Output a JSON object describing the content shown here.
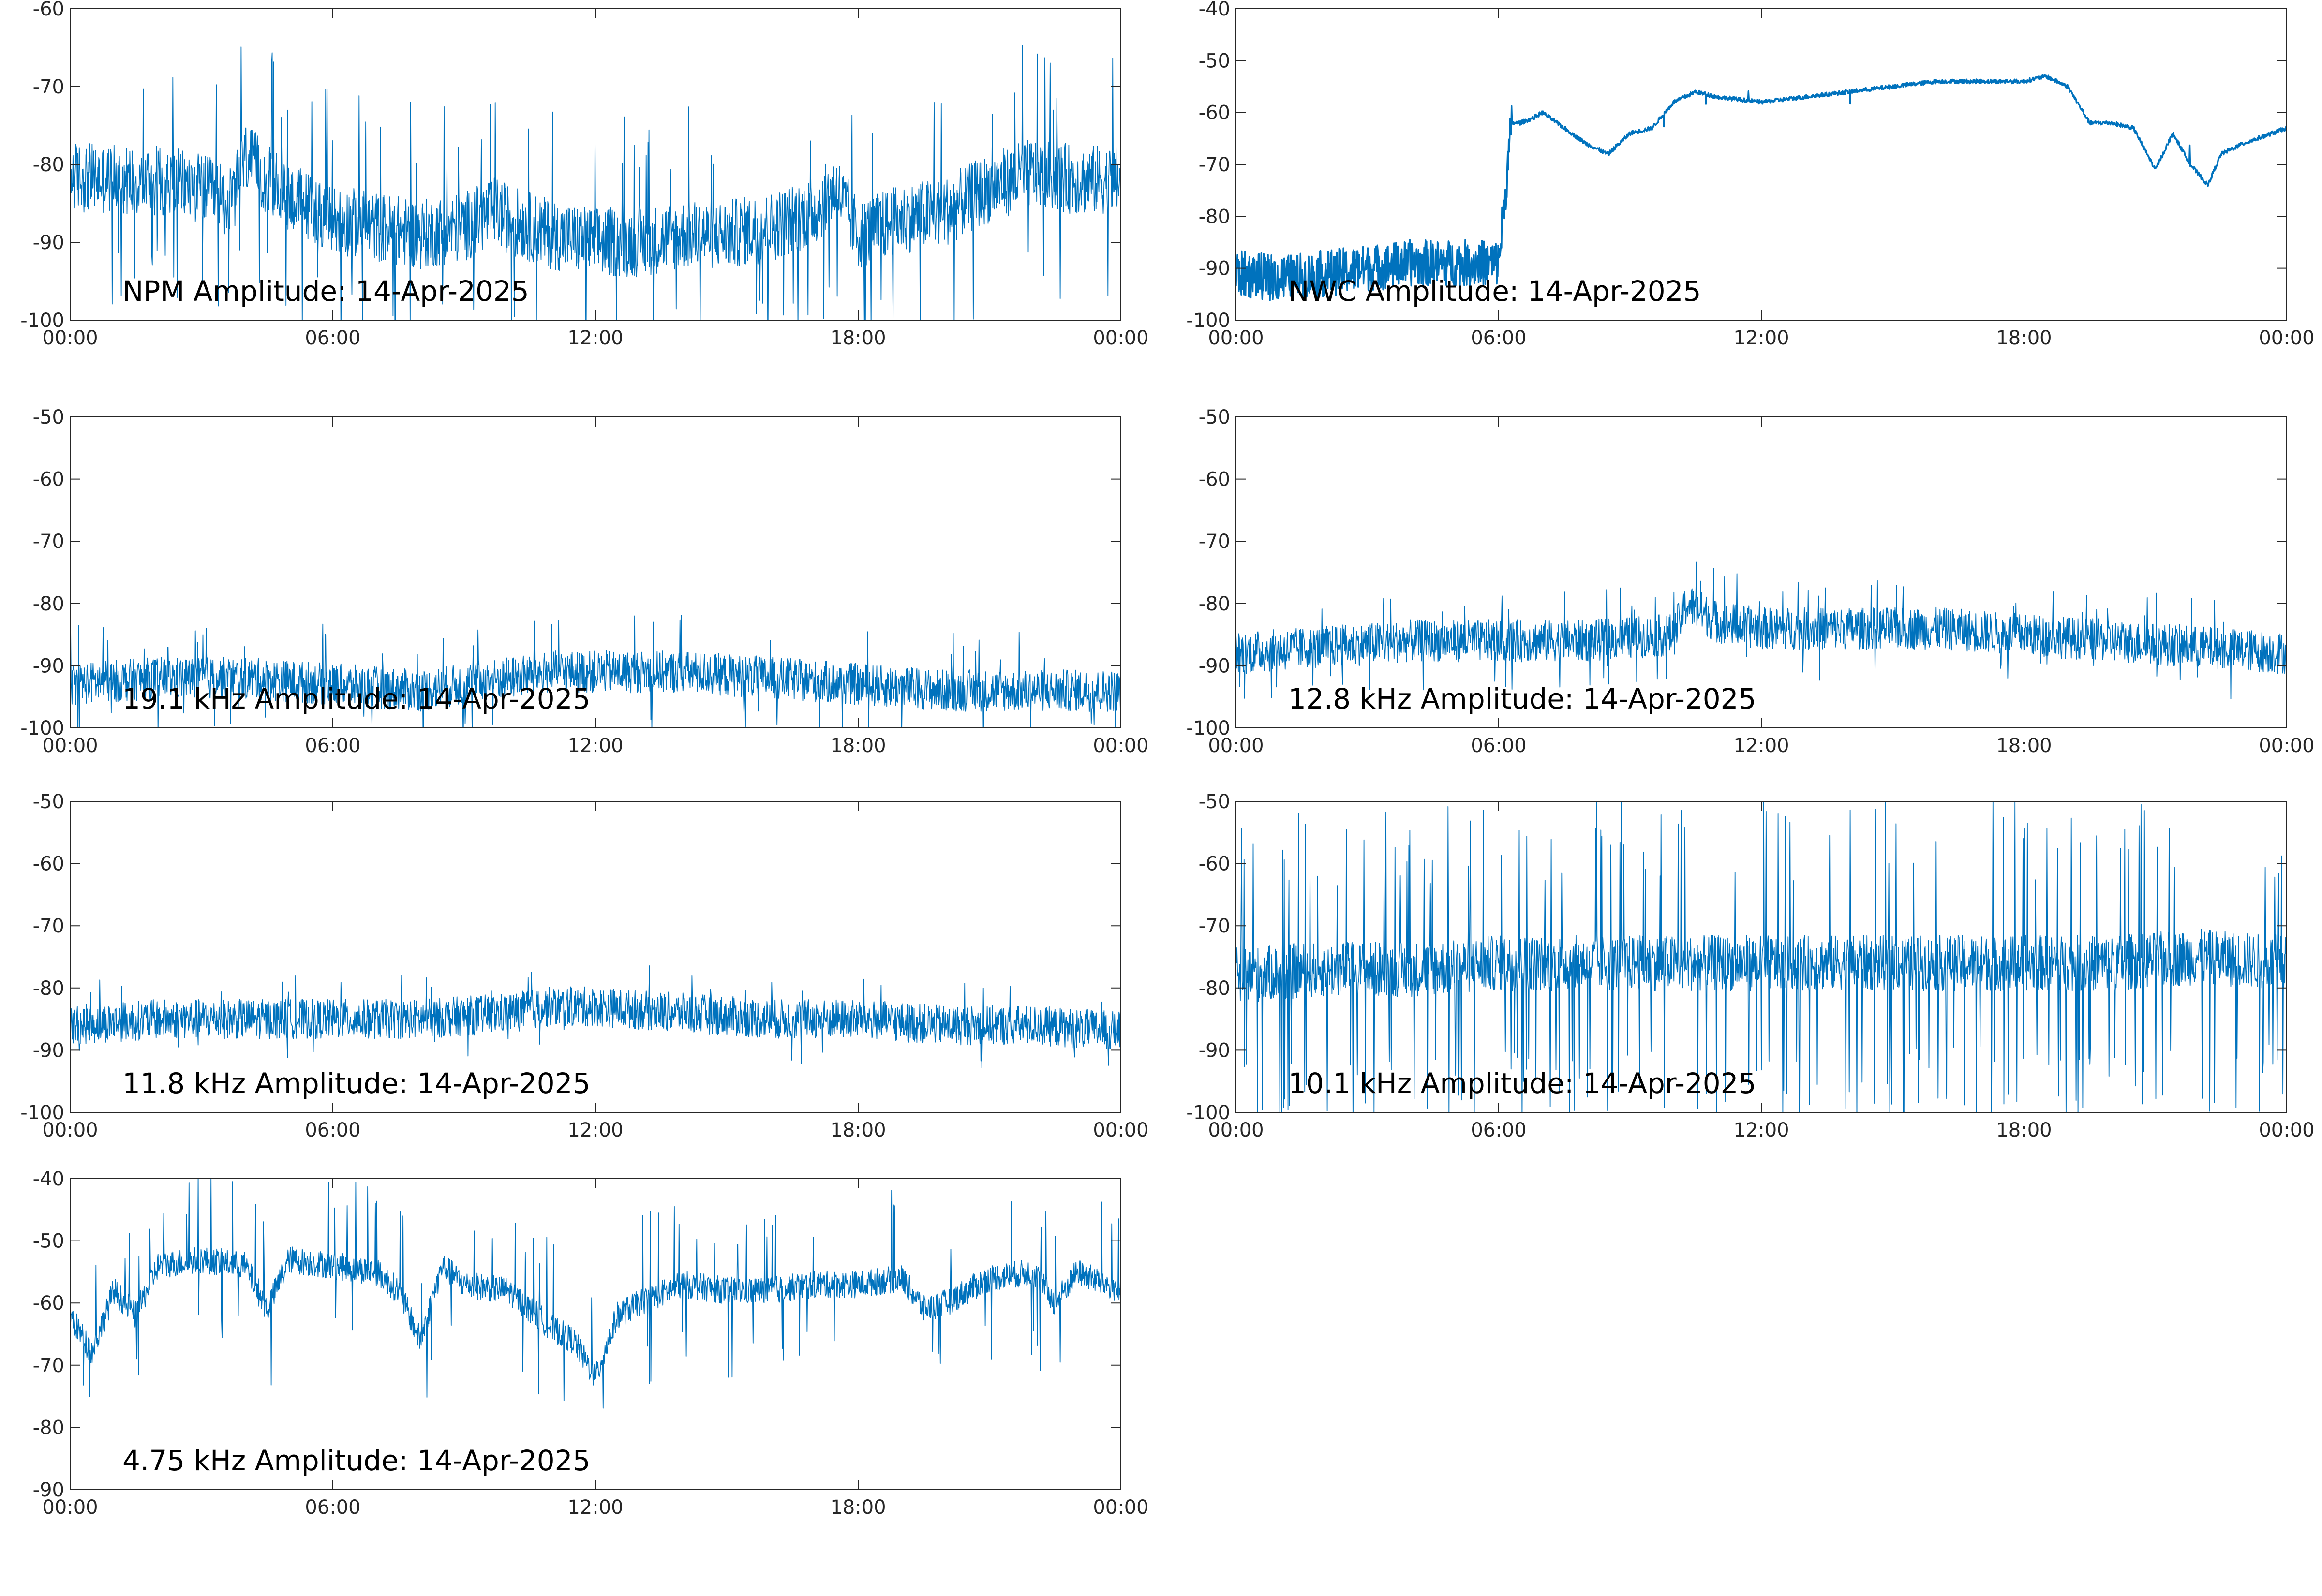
{
  "figure": {
    "line_color": "#0072bd",
    "axes_color": "#262626",
    "background": "#ffffff"
  },
  "chart_data": [
    {
      "type": "line",
      "title": "NPM Amplitude: 14-Apr-2025",
      "xlabel": "",
      "ylabel": "",
      "xlim": [
        "00:00",
        "00:00"
      ],
      "xtick_labels": [
        "00:00",
        "06:00",
        "12:00",
        "18:00",
        "00:00"
      ],
      "ylim": [
        -100,
        -60
      ],
      "ytick_labels": [
        "-100",
        "-90",
        "-80",
        "-70",
        "-60"
      ],
      "grid": false,
      "legend": "none",
      "series": [
        {
          "x_hours": [
            0,
            1,
            2,
            3,
            3.7,
            4,
            4.5,
            5,
            6,
            7,
            8,
            9,
            9.7,
            10,
            11,
            12,
            13,
            14,
            15,
            16,
            17,
            17.5,
            18,
            19,
            20,
            21,
            22,
            23,
            24
          ],
          "values": [
            -81.5,
            -82,
            -82,
            -83,
            -85,
            -79,
            -82,
            -84,
            -87,
            -88,
            -89,
            -88,
            -86,
            -87,
            -89,
            -90,
            -90,
            -89,
            -89,
            -88,
            -86,
            -83,
            -89,
            -87,
            -86,
            -83,
            -81,
            -82,
            -82
          ]
        }
      ]
    },
    {
      "type": "line",
      "title": "NWC Amplitude: 14-Apr-2025",
      "xlabel": "",
      "ylabel": "",
      "xlim": [
        "00:00",
        "00:00"
      ],
      "xtick_labels": [
        "00:00",
        "06:00",
        "12:00",
        "18:00",
        "00:00"
      ],
      "ylim": [
        -100,
        -40
      ],
      "ytick_labels": [
        "-100",
        "-90",
        "-80",
        "-70",
        "-60",
        "-50",
        "-40"
      ],
      "grid": false,
      "legend": "none",
      "series": [
        {
          "x_hours": [
            0,
            1,
            2,
            3,
            4,
            5,
            6,
            6.3,
            6.5,
            6.8,
            7,
            7.5,
            8,
            8.5,
            9,
            9.5,
            10,
            10.5,
            11,
            12,
            13,
            14,
            15,
            16,
            17,
            18,
            18.5,
            19,
            19.5,
            20,
            20.5,
            21,
            21.4,
            21.8,
            22.2,
            22.5,
            23,
            24
          ],
          "values": [
            -91,
            -92,
            -91,
            -90,
            -89,
            -89,
            -89,
            -62,
            -62,
            -61,
            -60,
            -63,
            -66,
            -68,
            -64,
            -63,
            -58,
            -56,
            -57,
            -58,
            -57,
            -56,
            -55,
            -54,
            -54,
            -54,
            -53,
            -55,
            -62,
            -62,
            -63,
            -71,
            -64,
            -70,
            -74,
            -68,
            -66,
            -63
          ]
        }
      ]
    },
    {
      "type": "line",
      "title": "19.1 kHz Amplitude: 14-Apr-2025",
      "xlabel": "",
      "ylabel": "",
      "xlim": [
        "00:00",
        "00:00"
      ],
      "xtick_labels": [
        "00:00",
        "06:00",
        "12:00",
        "18:00",
        "00:00"
      ],
      "ylim": [
        -100,
        -50
      ],
      "ytick_labels": [
        "-100",
        "-90",
        "-80",
        "-70",
        "-60",
        "-50"
      ],
      "grid": false,
      "legend": "none",
      "series": [
        {
          "x_hours": [
            0,
            2,
            4,
            6,
            8,
            10,
            11,
            12,
            14,
            16,
            18,
            20,
            22,
            24
          ],
          "values": [
            -93,
            -92,
            -92,
            -93,
            -94,
            -92,
            -91,
            -91,
            -91,
            -92,
            -93,
            -94,
            -94,
            -94
          ]
        }
      ]
    },
    {
      "type": "line",
      "title": "12.8 kHz Amplitude: 14-Apr-2025",
      "xlabel": "",
      "ylabel": "",
      "xlim": [
        "00:00",
        "00:00"
      ],
      "xtick_labels": [
        "00:00",
        "06:00",
        "12:00",
        "18:00",
        "00:00"
      ],
      "ylim": [
        -100,
        -50
      ],
      "ytick_labels": [
        "-100",
        "-90",
        "-80",
        "-70",
        "-60",
        "-50"
      ],
      "grid": false,
      "legend": "none",
      "series": [
        {
          "x_hours": [
            0,
            2,
            4,
            6,
            8,
            10,
            10.3,
            11,
            12,
            14,
            16,
            18,
            20,
            22,
            24
          ],
          "values": [
            -88,
            -87,
            -86,
            -86,
            -86,
            -85,
            -80,
            -83,
            -84,
            -84,
            -84,
            -85,
            -86,
            -87,
            -88
          ]
        }
      ]
    },
    {
      "type": "line",
      "title": "11.8 kHz Amplitude: 14-Apr-2025",
      "xlabel": "",
      "ylabel": "",
      "xlim": [
        "00:00",
        "00:00"
      ],
      "xtick_labels": [
        "00:00",
        "06:00",
        "12:00",
        "18:00",
        "00:00"
      ],
      "ylim": [
        -100,
        -50
      ],
      "ytick_labels": [
        "-100",
        "-90",
        "-80",
        "-70",
        "-60",
        "-50"
      ],
      "grid": false,
      "legend": "none",
      "series": [
        {
          "x_hours": [
            0,
            2,
            4,
            6,
            8,
            10,
            11,
            12,
            14,
            16,
            18,
            20,
            22,
            24
          ],
          "values": [
            -86,
            -85,
            -85,
            -85,
            -85,
            -84,
            -83,
            -83,
            -84,
            -85,
            -85,
            -86,
            -86,
            -87
          ]
        }
      ]
    },
    {
      "type": "line",
      "title": "10.1 kHz Amplitude: 14-Apr-2025",
      "xlabel": "",
      "ylabel": "",
      "xlim": [
        "00:00",
        "00:00"
      ],
      "xtick_labels": [
        "00:00",
        "06:00",
        "12:00",
        "18:00",
        "00:00"
      ],
      "ylim": [
        -100,
        -50
      ],
      "ytick_labels": [
        "-100",
        "-90",
        "-80",
        "-70",
        "-60",
        "-50"
      ],
      "grid": false,
      "legend": "none",
      "series": [
        {
          "x_hours": [
            0,
            2,
            4,
            6,
            8,
            10,
            12,
            14,
            16,
            18,
            20,
            22,
            24
          ],
          "values": [
            -78,
            -77,
            -77,
            -76,
            -76,
            -76,
            -76,
            -76,
            -76,
            -76,
            -76,
            -75,
            -76
          ]
        }
      ]
    },
    {
      "type": "line",
      "title": "4.75 kHz Amplitude: 14-Apr-2025",
      "xlabel": "",
      "ylabel": "",
      "xlim": [
        "00:00",
        "00:00"
      ],
      "xtick_labels": [
        "00:00",
        "06:00",
        "12:00",
        "18:00",
        "00:00"
      ],
      "ylim": [
        -90,
        -40
      ],
      "ytick_labels": [
        "-90",
        "-80",
        "-70",
        "-60",
        "-50",
        "-40"
      ],
      "grid": false,
      "legend": "none",
      "series": [
        {
          "x_hours": [
            0,
            0.5,
            1,
            1.5,
            2,
            3,
            4,
            4.5,
            5,
            6,
            7,
            7.5,
            8,
            8.5,
            9,
            10,
            11,
            11.5,
            12,
            12.5,
            13,
            14,
            15,
            16,
            17,
            18,
            19,
            19.5,
            20,
            21,
            22,
            22.5,
            23,
            24
          ],
          "values": [
            -62,
            -68,
            -58,
            -62,
            -54,
            -53,
            -54,
            -61,
            -53,
            -54,
            -55,
            -58,
            -66,
            -54,
            -57,
            -58,
            -64,
            -66,
            -72,
            -62,
            -60,
            -57,
            -58,
            -58,
            -57,
            -57,
            -56,
            -61,
            -60,
            -56,
            -55,
            -60,
            -55,
            -58
          ]
        }
      ]
    }
  ]
}
